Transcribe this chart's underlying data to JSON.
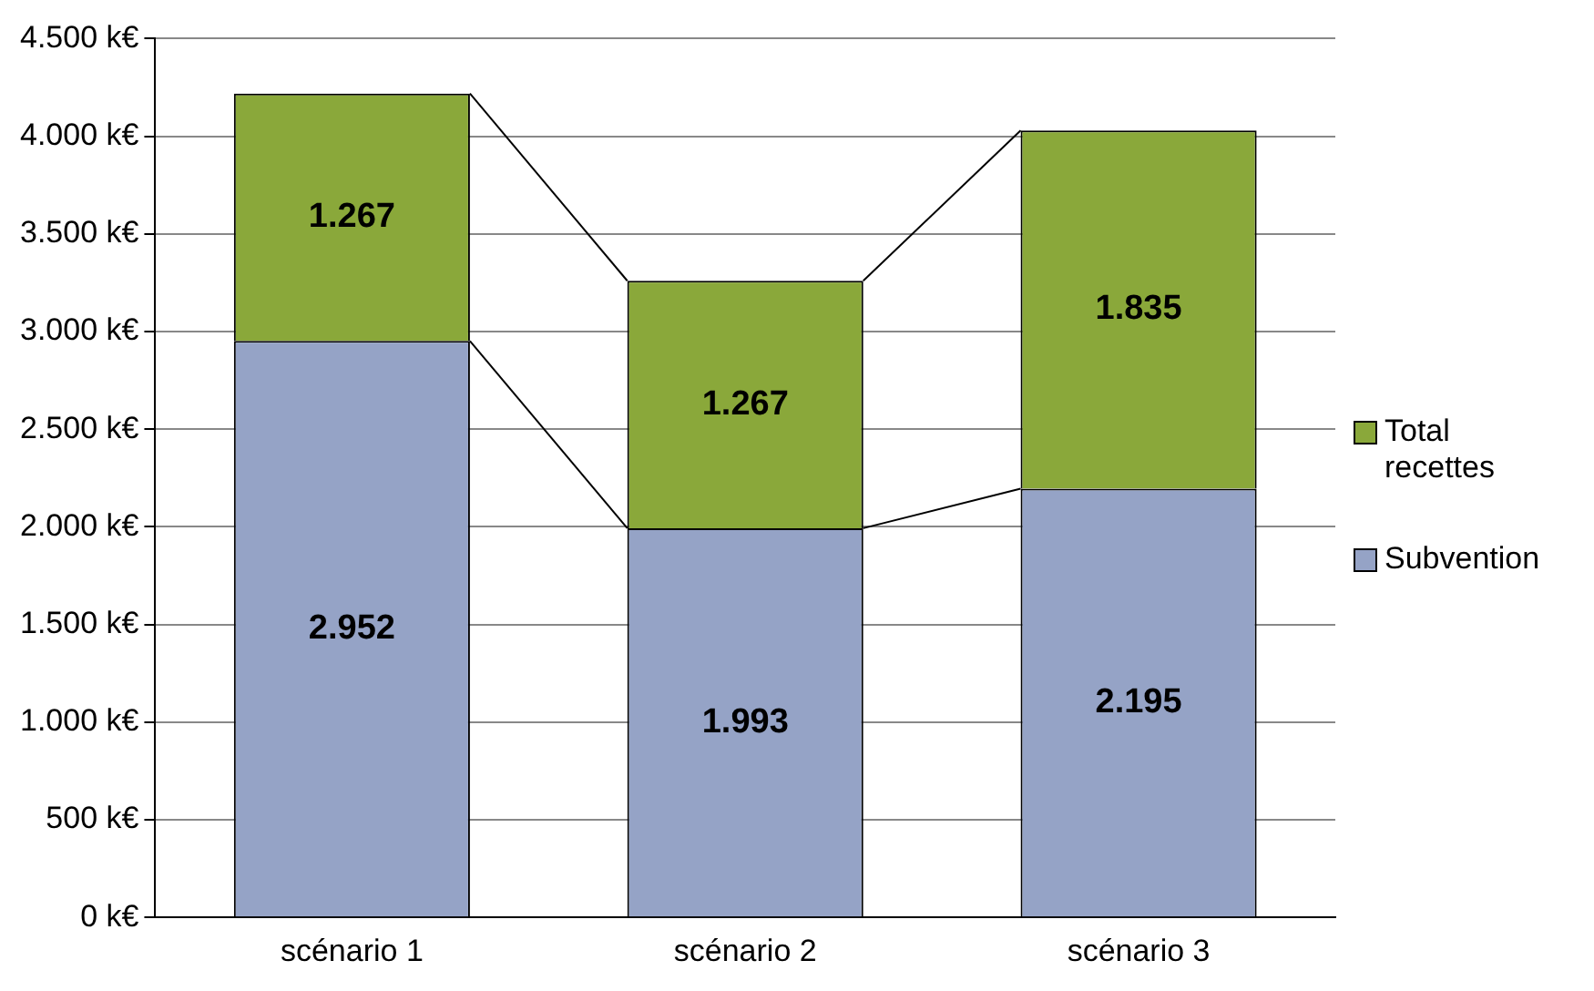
{
  "chart_data": {
    "type": "bar",
    "stacked": true,
    "categories": [
      "scénario 1",
      "scénario 2",
      "scénario 3"
    ],
    "series": [
      {
        "name": "Subvention",
        "color": "#95a3c6",
        "values": [
          2952,
          1993,
          2195
        ]
      },
      {
        "name": "Total recettes",
        "color": "#8aa83a",
        "values": [
          1267,
          1267,
          1835
        ]
      }
    ],
    "ylim": [
      0,
      4500
    ],
    "yticks": [
      {
        "value": 0,
        "label": "0 k€"
      },
      {
        "value": 500,
        "label": "500 k€"
      },
      {
        "value": 1000,
        "label": "1.000 k€"
      },
      {
        "value": 1500,
        "label": "1.500 k€"
      },
      {
        "value": 2000,
        "label": "2.000 k€"
      },
      {
        "value": 2500,
        "label": "2.500 k€"
      },
      {
        "value": 3000,
        "label": "3.000 k€"
      },
      {
        "value": 3500,
        "label": "3.500 k€"
      },
      {
        "value": 4000,
        "label": "4.000 k€"
      },
      {
        "value": 4500,
        "label": "4.500 k€"
      }
    ],
    "value_labels": [
      [
        "2.952",
        "1.993",
        "2.195"
      ],
      [
        "1.267",
        "1.267",
        "1.835"
      ]
    ],
    "grid": "y",
    "legend": "right"
  }
}
